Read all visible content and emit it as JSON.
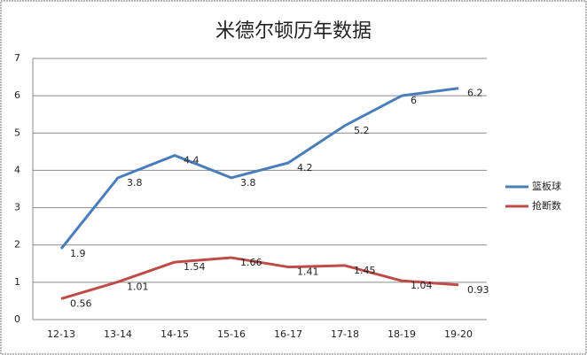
{
  "chart_data": {
    "type": "line",
    "title": "米德尔顿历年数据",
    "categories": [
      "12-13",
      "13-14",
      "14-15",
      "15-16",
      "16-17",
      "17-18",
      "18-19",
      "19-20"
    ],
    "series": [
      {
        "name": "篮板球",
        "color": "#4a7ebb",
        "values": [
          1.9,
          3.8,
          4.4,
          3.8,
          4.2,
          5.2,
          6,
          6.2
        ]
      },
      {
        "name": "抢断数",
        "color": "#be4b48",
        "values": [
          0.56,
          1.01,
          1.54,
          1.66,
          1.41,
          1.45,
          1.04,
          0.93
        ]
      }
    ],
    "ylim": [
      0,
      7
    ],
    "yticks": [
      0,
      1,
      2,
      3,
      4,
      5,
      6,
      7
    ],
    "grid": true,
    "legend": "right"
  }
}
